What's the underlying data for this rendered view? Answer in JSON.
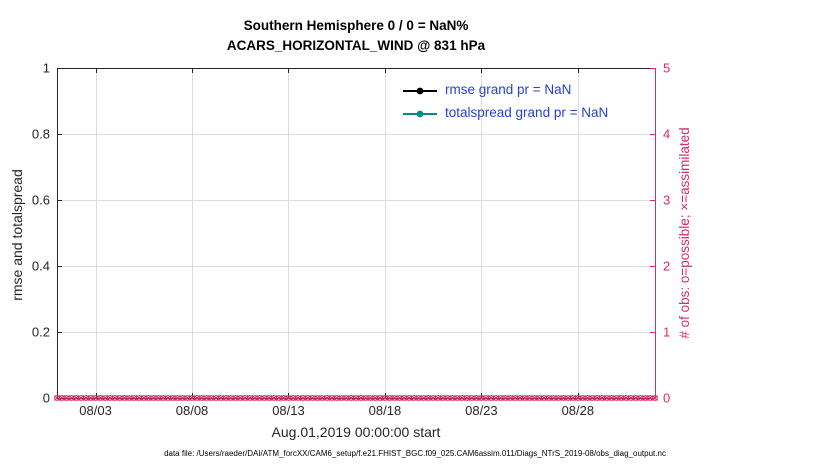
{
  "footer": {
    "text": "data file: /Users/raeder/DAI/ATM_forcXX/CAM6_setup/f.e21.FHIST_BGC.f09_025.CAM6assim.011/Diags_NTrS_2019-08/obs_diag_output.nc"
  },
  "chart_data": {
    "type": "line",
    "title": "Southern Hemisphere 0 / 0 = NaN%",
    "subtitle": "ACARS_HORIZONTAL_WIND @ 831 hPa",
    "xlabel": "Aug.01,2019 00:00:00 start",
    "ylabel_left": "rmse and totalspread",
    "ylabel_right": "# of obs: o=possible; ×=assimilated",
    "grid": true,
    "legend_position": "top-right-inside",
    "legend_text_color": "#2443cd",
    "axis_color": "#262626",
    "grid_color": "#dcdcdc",
    "right_axis_color": "#d92a6b",
    "x_ticks": [
      "08/03",
      "08/08",
      "08/13",
      "08/18",
      "08/23",
      "08/28"
    ],
    "x_tick_days": [
      2,
      7,
      12,
      17,
      22,
      27
    ],
    "x_range_days": [
      0,
      31
    ],
    "y_left_ticks": [
      0,
      0.2,
      0.4,
      0.6,
      0.8,
      1
    ],
    "y_left_range": [
      0,
      1
    ],
    "y_right_ticks": [
      0,
      1,
      2,
      3,
      4,
      5
    ],
    "y_right_range": [
      0,
      5
    ],
    "series": [
      {
        "name": "rmse grand pr = NaN",
        "color": "#000000",
        "values": []
      },
      {
        "name": "totalspread grand pr = NaN",
        "color": "#008b8b",
        "values": []
      }
    ],
    "obs_markers": {
      "color": "#d92a6b",
      "possible_marker": "o",
      "assimilated_marker": "×",
      "value": 0,
      "times_per_day": 4,
      "days": 31
    }
  }
}
